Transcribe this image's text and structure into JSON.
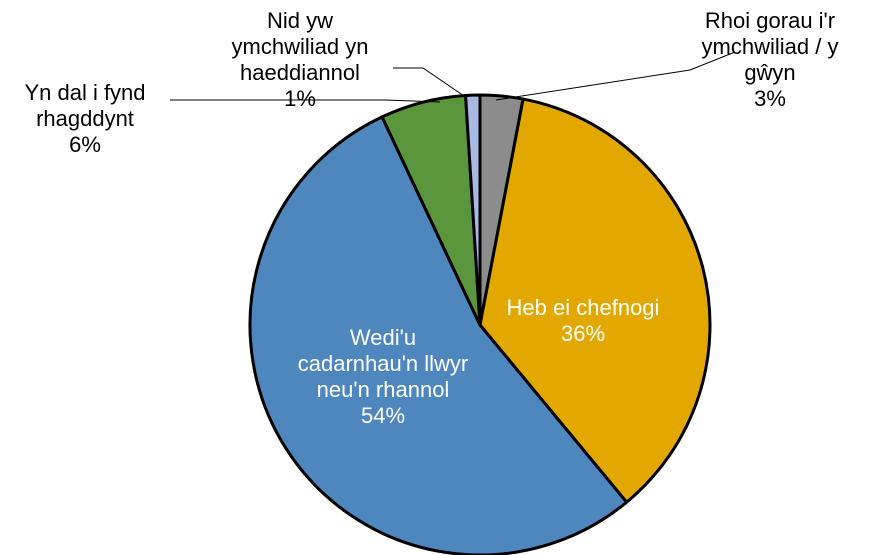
{
  "chart_data": {
    "type": "pie",
    "slices": [
      {
        "label_lines": [
          "Rhoi gorau i'r",
          "ymchwiliad / y",
          "gŵyn"
        ],
        "value": 3,
        "pct_label": "3%",
        "color": "#8c8c8c",
        "label_color": "#000000"
      },
      {
        "label_lines": [
          "Heb ei chefnogi"
        ],
        "value": 36,
        "pct_label": "36%",
        "color": "#e2a800",
        "label_color": "#ffffff"
      },
      {
        "label_lines": [
          "Wedi'u",
          "cadarnhau'n llwyr",
          "neu'n rhannol"
        ],
        "value": 54,
        "pct_label": "54%",
        "color": "#4e86be",
        "label_color": "#ffffff"
      },
      {
        "label_lines": [
          "Yn dal i fynd",
          "rhagddynt"
        ],
        "value": 6,
        "pct_label": "6%",
        "color": "#5a963c",
        "label_color": "#000000"
      },
      {
        "label_lines": [
          "Nid yw",
          "ymchwiliad yn",
          "haeddiannol"
        ],
        "value": 1,
        "pct_label": "1%",
        "color": "#a9b9e4",
        "label_color": "#000000"
      }
    ],
    "legend": "none"
  }
}
